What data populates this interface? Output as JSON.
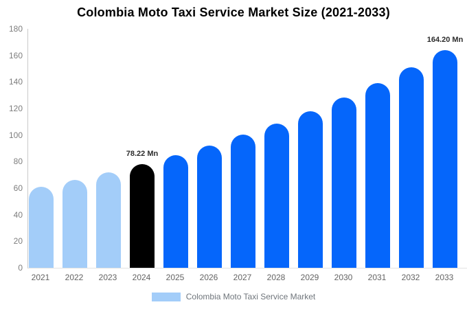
{
  "chart_data": {
    "type": "bar",
    "title": "Colombia Moto Taxi Service Market Size (2021-2033)",
    "categories": [
      "2021",
      "2022",
      "2023",
      "2024",
      "2025",
      "2026",
      "2027",
      "2028",
      "2029",
      "2030",
      "2031",
      "2032",
      "2033"
    ],
    "values": [
      61.08,
      66.33,
      72.03,
      78.22,
      84.94,
      92.24,
      100.16,
      108.76,
      118.1,
      128.24,
      139.25,
      151.21,
      164.2
    ],
    "unit": "Mn",
    "bar_colors": [
      "#a3cdf9",
      "#a3cdf9",
      "#a3cdf9",
      "#000000",
      "#0566fb",
      "#0566fb",
      "#0566fb",
      "#0566fb",
      "#0566fb",
      "#0566fb",
      "#0566fb",
      "#0566fb",
      "#0566fb"
    ],
    "annotations": [
      {
        "category": "2024",
        "text": "78.22 Mn"
      },
      {
        "category": "2033",
        "text": "164.20 Mn"
      }
    ],
    "ylim": [
      0,
      180
    ],
    "yticks": [
      0,
      20,
      40,
      60,
      80,
      100,
      120,
      140,
      160,
      180
    ],
    "grid": false,
    "legend_position": "bottom",
    "xlabel": "",
    "ylabel": ""
  },
  "legend": {
    "label": "Colombia Moto Taxi Service Market",
    "swatch_color": "#a3cdf9"
  },
  "colors": {
    "historical_bar": "#a3cdf9",
    "base_year_bar": "#000000",
    "forecast_bar": "#0566fb",
    "background": "#ffffff",
    "title_text": "#000000"
  }
}
